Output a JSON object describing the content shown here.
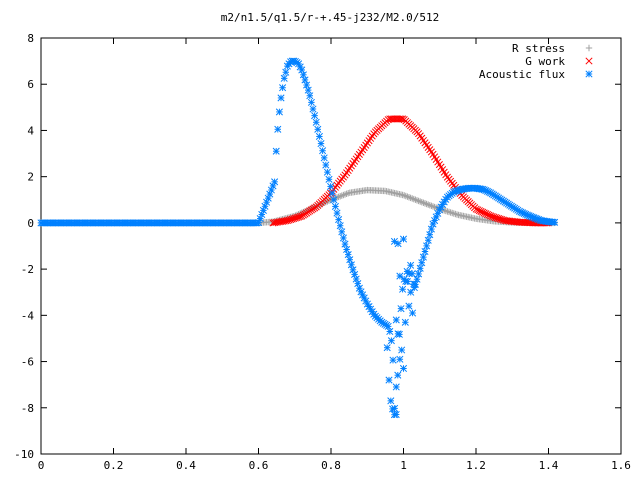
{
  "chart_data": {
    "type": "scatter",
    "title": "m2/n1.5/q1.5/r-+.45-j232/M2.0/512",
    "xlabel": "",
    "ylabel": "",
    "xlim": [
      0,
      1.6
    ],
    "ylim": [
      -10,
      8
    ],
    "x_ticks": [
      "0",
      "0.2",
      "0.4",
      "0.6",
      "0.8",
      "1",
      "1.2",
      "1.4",
      "1.6"
    ],
    "y_ticks": [
      "8",
      "6",
      "4",
      "2",
      "0",
      "-2",
      "-4",
      "-6",
      "-8",
      "-10"
    ],
    "grid": false,
    "legend_position": "top-right",
    "series": [
      {
        "name": "R stress",
        "marker": "+",
        "color": "#a0a0a0",
        "x": [
          0.0,
          0.6,
          0.64,
          0.7,
          0.75,
          0.8,
          0.85,
          0.9,
          0.95,
          1.0,
          1.05,
          1.1,
          1.15,
          1.2,
          1.25,
          1.3,
          1.35,
          1.4,
          1.42
        ],
        "y": [
          0.0,
          0.0,
          0.05,
          0.3,
          0.65,
          1.0,
          1.3,
          1.42,
          1.38,
          1.2,
          0.9,
          0.6,
          0.35,
          0.18,
          0.07,
          0.02,
          0.0,
          0.0,
          0.0
        ]
      },
      {
        "name": "G work",
        "marker": "x",
        "color": "#ff0000",
        "x": [
          0.64,
          0.68,
          0.72,
          0.76,
          0.8,
          0.84,
          0.88,
          0.92,
          0.96,
          1.0,
          1.04,
          1.08,
          1.12,
          1.16,
          1.2,
          1.24,
          1.28,
          1.32,
          1.36,
          1.4
        ],
        "y": [
          0.0,
          0.1,
          0.3,
          0.7,
          1.3,
          2.1,
          3.0,
          3.9,
          4.5,
          4.5,
          3.9,
          3.0,
          2.0,
          1.2,
          0.6,
          0.3,
          0.1,
          0.03,
          0.0,
          0.0
        ]
      },
      {
        "name": "Acoustic flux",
        "marker": "*",
        "color": "#0080ff",
        "x": [
          0.0,
          0.6,
          0.645,
          0.65,
          0.66,
          0.67,
          0.68,
          0.69,
          0.7,
          0.71,
          0.72,
          0.74,
          0.76,
          0.78,
          0.8,
          0.82,
          0.84,
          0.86,
          0.88,
          0.9,
          0.92,
          0.94,
          0.96,
          0.97,
          0.975,
          0.98,
          0.99,
          1.0,
          1.01,
          1.02,
          1.03,
          1.04,
          1.06,
          1.08,
          1.1,
          1.12,
          1.14,
          1.16,
          1.18,
          1.2,
          1.22,
          1.24,
          1.26,
          1.28,
          1.3,
          1.32,
          1.34,
          1.36,
          1.38,
          1.4,
          1.42
        ],
        "y": [
          0.0,
          0.0,
          1.8,
          3.5,
          5.2,
          6.2,
          6.8,
          7.0,
          7.0,
          6.9,
          6.6,
          5.6,
          4.3,
          2.9,
          1.5,
          0.2,
          -1.0,
          -2.0,
          -2.9,
          -3.5,
          -4.0,
          -4.3,
          -4.5,
          -5.4,
          -8.0,
          -8.3,
          -4.3,
          -2.4,
          -2.6,
          -1.8,
          -2.8,
          -2.3,
          -1.2,
          -0.1,
          0.6,
          1.1,
          1.35,
          1.45,
          1.5,
          1.5,
          1.45,
          1.3,
          1.1,
          0.9,
          0.7,
          0.5,
          0.35,
          0.22,
          0.1,
          0.05,
          0.02
        ]
      }
    ],
    "scattered_points": [
      {
        "x": 0.955,
        "y": -5.4
      },
      {
        "x": 0.96,
        "y": -6.8
      },
      {
        "x": 0.965,
        "y": -7.7
      },
      {
        "x": 0.97,
        "y": -8.05
      },
      {
        "x": 0.975,
        "y": -8.3
      },
      {
        "x": 0.98,
        "y": -7.1
      },
      {
        "x": 0.985,
        "y": -4.8
      },
      {
        "x": 0.99,
        "y": -5.9
      },
      {
        "x": 0.995,
        "y": -5.5
      },
      {
        "x": 1.0,
        "y": -6.3
      },
      {
        "x": 1.005,
        "y": -4.3
      },
      {
        "x": 0.98,
        "y": -4.2
      },
      {
        "x": 0.99,
        "y": -2.3
      },
      {
        "x": 0.975,
        "y": -0.8
      },
      {
        "x": 0.985,
        "y": -0.9
      },
      {
        "x": 1.0,
        "y": -0.7
      },
      {
        "x": 1.01,
        "y": -2.1
      },
      {
        "x": 1.015,
        "y": -3.6
      },
      {
        "x": 1.02,
        "y": -3.0
      },
      {
        "x": 1.025,
        "y": -3.9
      },
      {
        "x": 1.03,
        "y": -2.8
      }
    ]
  }
}
